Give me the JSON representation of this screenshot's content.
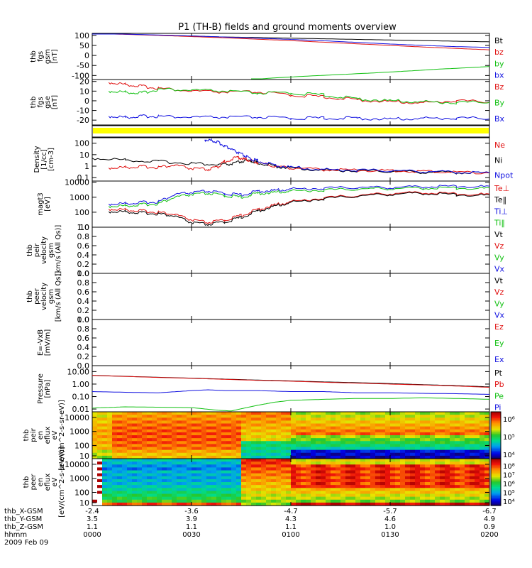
{
  "title": "P1 (TH-B) fields and ground moments overview",
  "colors": {
    "black": "#000000",
    "red": "#e01010",
    "green": "#10c010",
    "blue": "#1010e0",
    "yellow": "#ffff00"
  },
  "chart_data": [
    {
      "id": "fgs_gsm",
      "type": "line",
      "ylabel": [
        "thb",
        "fgs",
        "gsm",
        "[nT]"
      ],
      "yticks": [
        "100",
        "50",
        "0",
        "-50",
        "-100"
      ],
      "ylim": [
        -120,
        110
      ],
      "legend": [
        {
          "label": "Bt",
          "color": "#000000"
        },
        {
          "label": "bz",
          "color": "#e01010"
        },
        {
          "label": "by",
          "color": "#10c010"
        },
        {
          "label": "bx",
          "color": "#1010e0"
        }
      ],
      "series": [
        {
          "name": "Bt",
          "color": "#000000",
          "x": [
            0,
            10,
            20,
            30,
            40,
            50,
            60,
            70,
            80,
            90,
            100,
            110,
            120
          ],
          "y": [
            110,
            106,
            101,
            97,
            92,
            89,
            86,
            83,
            80,
            77,
            74,
            71,
            68
          ]
        },
        {
          "name": "bz",
          "color": "#e01010",
          "x": [
            0,
            10,
            20,
            30,
            40,
            50,
            60,
            70,
            80,
            90,
            100,
            110,
            120
          ],
          "y": [
            110,
            105,
            100,
            94,
            88,
            81,
            74,
            66,
            58,
            50,
            42,
            35,
            28
          ]
        },
        {
          "name": "by",
          "color": "#10c010",
          "x": [
            48,
            55,
            65,
            75,
            85,
            95,
            105,
            115,
            120
          ],
          "y": [
            -120,
            -112,
            -103,
            -95,
            -87,
            -78,
            -68,
            -60,
            -55
          ]
        },
        {
          "name": "bx",
          "color": "#1010e0",
          "x": [
            0,
            10,
            20,
            30,
            40,
            50,
            60,
            70,
            80,
            90,
            100,
            110,
            120
          ],
          "y": [
            110,
            106,
            102,
            97,
            92,
            86,
            80,
            73,
            65,
            57,
            50,
            44,
            40
          ]
        }
      ]
    },
    {
      "id": "fgs_gse",
      "type": "line",
      "ylabel": [
        "thb",
        "fgs",
        "gse",
        "[nT]"
      ],
      "yticks": [
        "20",
        "10",
        "0",
        "-10",
        "-20"
      ],
      "ylim": [
        -25,
        22
      ],
      "legend": [
        {
          "label": "Bz",
          "color": "#e01010"
        },
        {
          "label": "By",
          "color": "#10c010"
        },
        {
          "label": "Bx",
          "color": "#1010e0"
        }
      ],
      "series": [
        {
          "name": "Bz",
          "color": "#e01010",
          "x": [
            5,
            10,
            15,
            20,
            30,
            40,
            50,
            60,
            70,
            80,
            90,
            100,
            110,
            120
          ],
          "y": [
            19,
            17,
            15,
            13,
            10,
            9,
            9,
            6,
            4,
            1,
            -1,
            -2,
            0,
            -1
          ]
        },
        {
          "name": "By",
          "color": "#10c010",
          "x": [
            5,
            10,
            15,
            20,
            30,
            40,
            50,
            60,
            70,
            80,
            90,
            100,
            110,
            120
          ],
          "y": [
            10,
            9,
            8,
            12,
            11,
            10,
            8,
            8,
            6,
            2,
            0,
            -1,
            -2,
            -1
          ]
        },
        {
          "name": "Bx",
          "color": "#1010e0",
          "x": [
            5,
            10,
            15,
            20,
            30,
            40,
            50,
            60,
            70,
            80,
            90,
            100,
            110,
            120
          ],
          "y": [
            -16,
            -17,
            -16,
            -16,
            -17,
            -17,
            -17,
            -18,
            -18,
            -18,
            -19,
            -18,
            -18,
            -18
          ]
        }
      ]
    },
    {
      "id": "density",
      "type": "line",
      "log": true,
      "ylabel": [
        "Density",
        "[1/cc]",
        "[cm-3]"
      ],
      "yticks": [
        "100",
        "10",
        "1",
        "0.1"
      ],
      "ylim": [
        0.05,
        300
      ],
      "legend": [
        {
          "label": "Ne",
          "color": "#e01010"
        },
        {
          "label": "Ni",
          "color": "#000000"
        },
        {
          "label": "Npot",
          "color": "#1010e0"
        }
      ],
      "series": [
        {
          "name": "Ni",
          "color": "#000000",
          "x": [
            0,
            10,
            20,
            30,
            38,
            42,
            45,
            48,
            50,
            55,
            60,
            70,
            80,
            90,
            100,
            110,
            120
          ],
          "y": [
            5,
            3.5,
            2.5,
            1.8,
            1.3,
            1.5,
            2.5,
            3,
            2,
            1,
            0.7,
            0.45,
            0.4,
            0.35,
            0.3,
            0.28,
            0.25
          ]
        },
        {
          "name": "Ne",
          "color": "#e01010",
          "x": [
            5,
            10,
            15,
            20,
            25,
            30,
            35,
            38,
            40,
            44,
            46,
            48,
            50,
            55,
            60,
            70,
            80,
            90,
            100,
            110,
            120
          ],
          "y": [
            0.7,
            0.8,
            0.9,
            0.8,
            1.2,
            0.6,
            0.5,
            0.9,
            2.5,
            6,
            4,
            3,
            2,
            1,
            0.7,
            0.5,
            0.45,
            0.4,
            0.35,
            0.3,
            0.28
          ]
        },
        {
          "name": "Npot",
          "color": "#1010e0",
          "x": [
            34,
            36,
            38,
            40,
            42,
            44,
            46,
            48,
            50,
            55,
            60,
            70,
            80,
            90,
            100,
            110,
            120
          ],
          "y": [
            200,
            180,
            120,
            60,
            30,
            15,
            8,
            4,
            3,
            1.2,
            0.8,
            0.5,
            0.45,
            0.4,
            0.35,
            0.3,
            0.25
          ]
        }
      ]
    },
    {
      "id": "temperature",
      "type": "line",
      "log": true,
      "ylabel": [
        "magt3",
        "[eV]"
      ],
      "yticks": [
        "10000",
        "1000",
        "100",
        "10"
      ],
      "ylim": [
        10,
        12000
      ],
      "legend": [
        {
          "label": "Te⊥",
          "color": "#e01010"
        },
        {
          "label": "Te‖",
          "color": "#000000"
        },
        {
          "label": "Ti⊥",
          "color": "#1010e0"
        },
        {
          "label": "Ti‖",
          "color": "#10c010"
        }
      ],
      "series": [
        {
          "name": "Ti⊥",
          "color": "#1010e0",
          "x": [
            5,
            10,
            15,
            20,
            25,
            30,
            35,
            40,
            45,
            50,
            55,
            60,
            70,
            80,
            90,
            100,
            110,
            120
          ],
          "y": [
            350,
            380,
            450,
            500,
            1500,
            2000,
            2500,
            1800,
            1400,
            2500,
            2800,
            3500,
            4000,
            4500,
            4500,
            5000,
            5500,
            5000
          ]
        },
        {
          "name": "Ti‖",
          "color": "#10c010",
          "x": [
            5,
            10,
            15,
            20,
            25,
            30,
            35,
            40,
            45,
            50,
            55,
            60,
            70,
            80,
            90,
            100,
            110,
            120
          ],
          "y": [
            250,
            270,
            320,
            380,
            1000,
            1500,
            1800,
            1300,
            1000,
            1800,
            2100,
            2600,
            3000,
            3500,
            3800,
            4000,
            4200,
            3800
          ]
        },
        {
          "name": "Te⊥",
          "color": "#e01010",
          "x": [
            5,
            10,
            15,
            20,
            25,
            30,
            35,
            40,
            45,
            50,
            55,
            60,
            70,
            80,
            90,
            100,
            110,
            120
          ],
          "y": [
            160,
            150,
            120,
            100,
            70,
            30,
            20,
            30,
            60,
            150,
            300,
            500,
            900,
            1300,
            1800,
            2000,
            1700,
            1500
          ]
        },
        {
          "name": "Te‖",
          "color": "#000000",
          "x": [
            5,
            10,
            15,
            20,
            25,
            30,
            35,
            40,
            45,
            50,
            55,
            60,
            70,
            80,
            90,
            100,
            110,
            120
          ],
          "y": [
            110,
            110,
            90,
            80,
            55,
            20,
            15,
            22,
            45,
            120,
            250,
            450,
            800,
            1200,
            1600,
            1800,
            1500,
            1300
          ]
        }
      ]
    },
    {
      "id": "peir_velocity",
      "type": "line",
      "ylabel": [
        "thb",
        "peir",
        "velocity",
        "gsm",
        "[km/s (All Qs)]"
      ],
      "yticks": [
        "1.0",
        "0.8",
        "0.6",
        "0.4",
        "0.2",
        "0.0"
      ],
      "ylim": [
        0,
        1
      ],
      "legend": [
        {
          "label": "Vt",
          "color": "#000000"
        },
        {
          "label": "Vz",
          "color": "#e01010"
        },
        {
          "label": "Vy",
          "color": "#10c010"
        },
        {
          "label": "Vx",
          "color": "#1010e0"
        }
      ],
      "series": []
    },
    {
      "id": "peer_velocity",
      "type": "line",
      "ylabel": [
        "thb",
        "peer",
        "velocity",
        "gsm",
        "[km/s (All Qs)]"
      ],
      "yticks": [
        "1.0",
        "0.8",
        "0.6",
        "0.4",
        "0.2",
        "0.0"
      ],
      "ylim": [
        0,
        1
      ],
      "legend": [
        {
          "label": "Vt",
          "color": "#000000"
        },
        {
          "label": "Vz",
          "color": "#e01010"
        },
        {
          "label": "Vy",
          "color": "#10c010"
        },
        {
          "label": "Vx",
          "color": "#1010e0"
        }
      ],
      "series": []
    },
    {
      "id": "efield",
      "type": "line",
      "ylabel": [
        "E=-VxB",
        "[mV/m]"
      ],
      "yticks": [
        "1.0",
        "0.8",
        "0.6",
        "0.4",
        "0.2",
        "0.0"
      ],
      "ylim": [
        0,
        1
      ],
      "legend": [
        {
          "label": "Ez",
          "color": "#e01010"
        },
        {
          "label": "Ey",
          "color": "#10c010"
        },
        {
          "label": "Ex",
          "color": "#1010e0"
        }
      ],
      "series": []
    },
    {
      "id": "pressure",
      "type": "line",
      "log": true,
      "ylabel": [
        "Pressure",
        "[nPa]"
      ],
      "yticks": [
        "10.00",
        "1.00",
        "0.10",
        "0.01"
      ],
      "ylim": [
        0.006,
        30
      ],
      "legend": [
        {
          "label": "Pt",
          "color": "#000000"
        },
        {
          "label": "Pb",
          "color": "#e01010"
        },
        {
          "label": "Pe",
          "color": "#10c010"
        },
        {
          "label": "Pi",
          "color": "#1010e0"
        }
      ],
      "series": [
        {
          "name": "Pt",
          "color": "#000000",
          "x": [
            0,
            10,
            20,
            30,
            40,
            50,
            60,
            70,
            80,
            90,
            100,
            110,
            120
          ],
          "y": [
            5,
            4.2,
            3.5,
            3.0,
            2.5,
            2.1,
            1.8,
            1.5,
            1.3,
            1.1,
            0.9,
            0.75,
            0.6
          ]
        },
        {
          "name": "Pb",
          "color": "#e01010",
          "x": [
            0,
            10,
            20,
            30,
            40,
            50,
            60,
            70,
            80,
            90,
            100,
            110,
            120
          ],
          "y": [
            4.9,
            4.1,
            3.4,
            2.9,
            2.4,
            2.0,
            1.7,
            1.4,
            1.2,
            1.0,
            0.85,
            0.7,
            0.55
          ]
        },
        {
          "name": "Pi",
          "color": "#1010e0",
          "x": [
            0,
            10,
            20,
            30,
            35,
            40,
            45,
            50,
            60,
            70,
            80,
            90,
            100,
            110,
            120
          ],
          "y": [
            0.25,
            0.22,
            0.2,
            0.3,
            0.35,
            0.3,
            0.3,
            0.3,
            0.25,
            0.25,
            0.2,
            0.2,
            0.18,
            0.17,
            0.15
          ]
        },
        {
          "name": "Pe",
          "color": "#10c010",
          "x": [
            0,
            10,
            20,
            30,
            38,
            42,
            46,
            50,
            55,
            60,
            70,
            80,
            90,
            100,
            110,
            120
          ],
          "y": [
            0.012,
            0.015,
            0.014,
            0.013,
            0.008,
            0.007,
            0.012,
            0.02,
            0.035,
            0.05,
            0.06,
            0.07,
            0.07,
            0.08,
            0.07,
            0.06
          ]
        }
      ]
    },
    {
      "id": "peir_spec",
      "type": "heatmap",
      "ylabel": [
        "thb",
        "peir",
        "en",
        "eflux",
        "eV",
        "[eV/(cm^2-s-sr-eV)]"
      ],
      "yticks": [
        "10000",
        "1000",
        "100",
        "10"
      ],
      "colorbar_ticks": [
        "10⁶",
        "10⁵",
        "10⁴"
      ],
      "description_values": {
        "low_energy_change_minute": 45
      }
    },
    {
      "id": "peer_spec",
      "type": "heatmap",
      "ylabel": [
        "thb",
        "peer",
        "en",
        "eflux",
        "eV",
        "[eV/(cm^2-s-sr-eV)]"
      ],
      "yticks": [
        "10000",
        "1000",
        "100",
        "10"
      ],
      "colorbar_ticks": [
        "10⁸",
        "10⁷",
        "10⁶",
        "10⁵",
        "10⁴"
      ]
    }
  ],
  "xaxis": {
    "range_minutes": [
      0,
      120
    ],
    "tick_minutes": [
      0,
      30,
      60,
      90,
      120
    ],
    "rows": [
      {
        "label": "thb_X-GSM",
        "values": [
          "-2.4",
          "-3.6",
          "-4.7",
          "-5.7",
          "-6.7"
        ]
      },
      {
        "label": "thb_Y-GSM",
        "values": [
          "3.5",
          "3.9",
          "4.3",
          "4.6",
          "4.9"
        ]
      },
      {
        "label": "thb_Z-GSM",
        "values": [
          "1.1",
          "1.1",
          "1.1",
          "1.0",
          "0.9"
        ]
      },
      {
        "label": "hhmm",
        "values": [
          "0000",
          "0030",
          "0100",
          "0130",
          "0200"
        ]
      }
    ],
    "date": "2009 Feb 09"
  }
}
